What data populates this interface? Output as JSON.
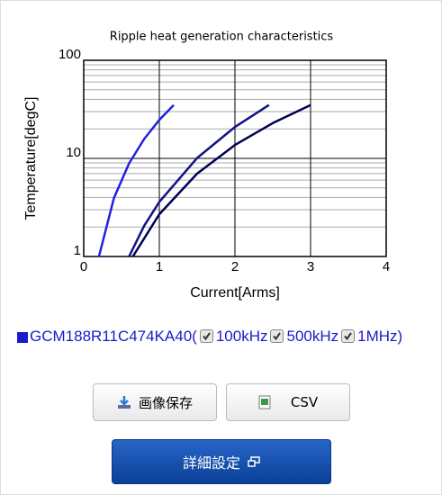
{
  "chart_data": {
    "type": "line",
    "title": "Ripple heat generation characteristics",
    "xlabel": "Current[Arms]",
    "ylabel": "Temperature[degC]",
    "xlim": [
      0,
      4
    ],
    "xticks": [
      0,
      1,
      2,
      3,
      4
    ],
    "ylim": [
      1,
      100
    ],
    "yticks": [
      1,
      10,
      100
    ],
    "yscale": "log",
    "yticks_minor": [
      2,
      3,
      4,
      5,
      6,
      7,
      8,
      9,
      20,
      30,
      40,
      50,
      60,
      70,
      80,
      90
    ],
    "grid": true,
    "series": [
      {
        "name": "100kHz",
        "color": "#2222dd",
        "x": [
          0.2,
          0.4,
          0.6,
          0.8,
          1.0,
          1.19
        ],
        "values": [
          0.99,
          3.95,
          8.9,
          15.8,
          24.7,
          35
        ]
      },
      {
        "name": "500kHz",
        "color": "#111188",
        "x": [
          0.6,
          0.8,
          1.0,
          1.5,
          2.0,
          2.45
        ],
        "values": [
          1.0,
          2.06,
          3.6,
          10.1,
          20.9,
          35
        ]
      },
      {
        "name": "1MHz",
        "color": "#000055",
        "x": [
          0.65,
          1.0,
          1.5,
          2.0,
          2.5,
          3.0
        ],
        "values": [
          1.0,
          2.7,
          7.0,
          13.7,
          22.9,
          35
        ]
      }
    ]
  },
  "legend": {
    "part": "GCM188R11C474KA40(",
    "close": ")"
  },
  "buttons": {
    "save": "画像保存",
    "csv": "CSV",
    "settings": "詳細設定"
  }
}
